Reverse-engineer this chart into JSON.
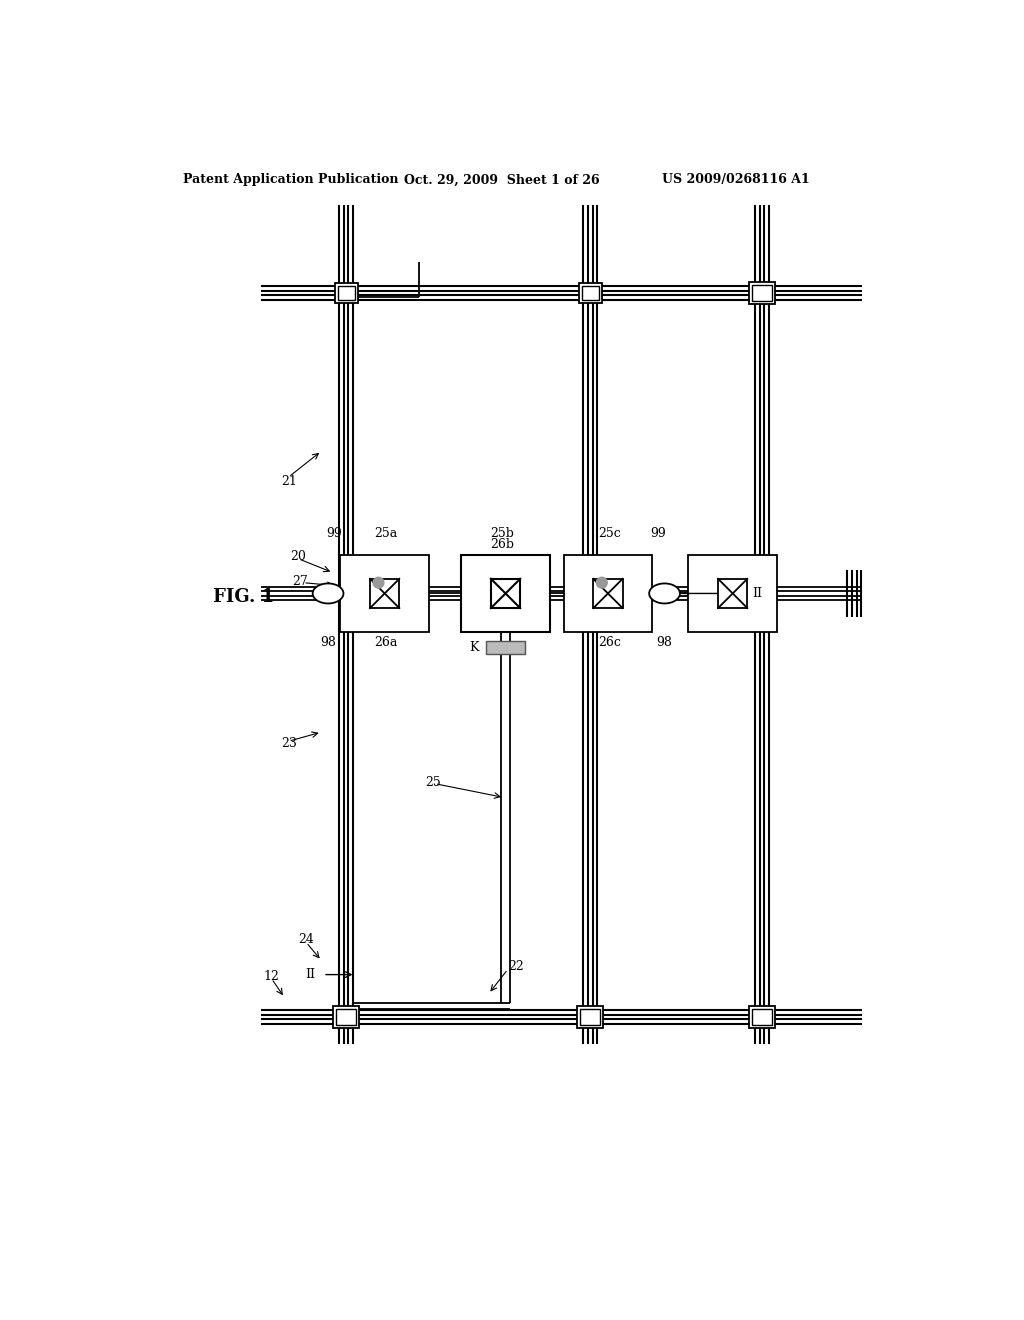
{
  "header_left": "Patent Application Publication",
  "header_center": "Oct. 29, 2009  Sheet 1 of 26",
  "header_right": "US 2009/0268116 A1",
  "bg_color": "#ffffff",
  "line_color": "#000000",
  "fig_label": "FIG. 1"
}
